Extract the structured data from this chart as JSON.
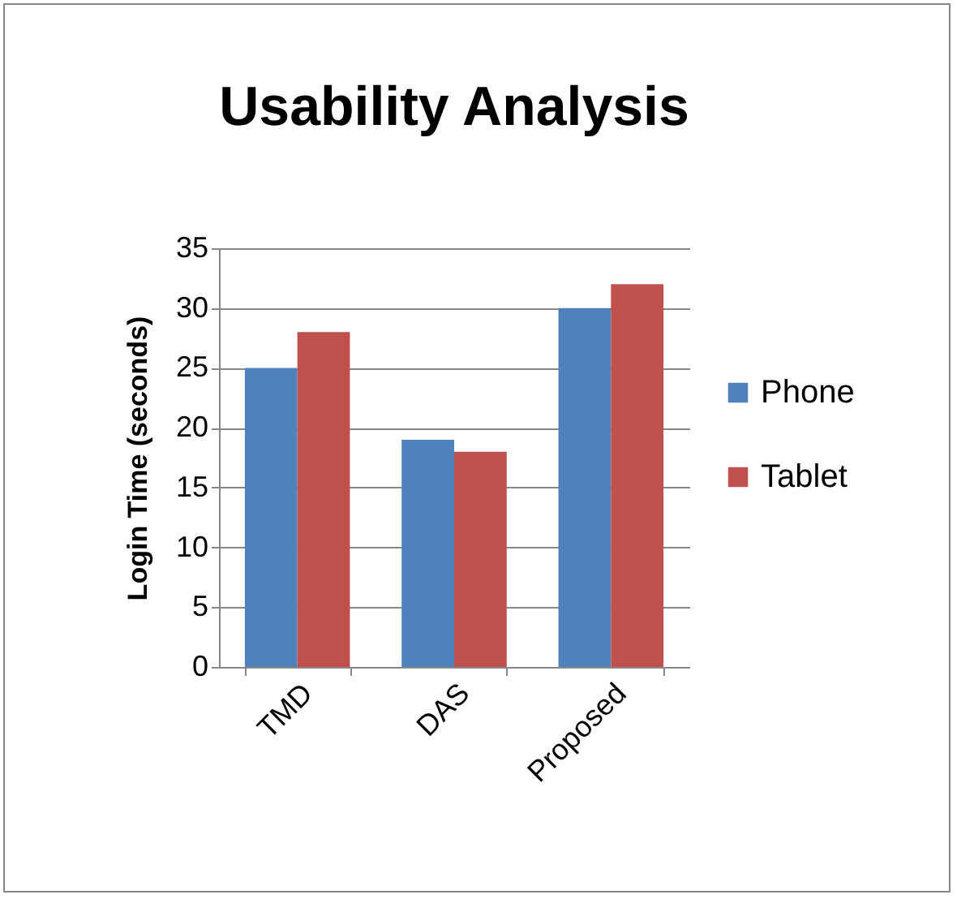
{
  "chart_data": {
    "type": "bar",
    "title": "Usability Analysis",
    "ylabel": "Login Time (seconds)",
    "categories": [
      "TMD",
      "DAS",
      "Proposed"
    ],
    "series": [
      {
        "name": "Phone",
        "color": "#4f81bd",
        "values": [
          25,
          19,
          30
        ]
      },
      {
        "name": "Tablet",
        "color": "#c0504d",
        "values": [
          28,
          18,
          32
        ]
      }
    ],
    "ylim": [
      0,
      35
    ],
    "yticks": [
      0,
      5,
      10,
      15,
      20,
      25,
      30,
      35
    ],
    "grid": "y",
    "legend": "right"
  }
}
